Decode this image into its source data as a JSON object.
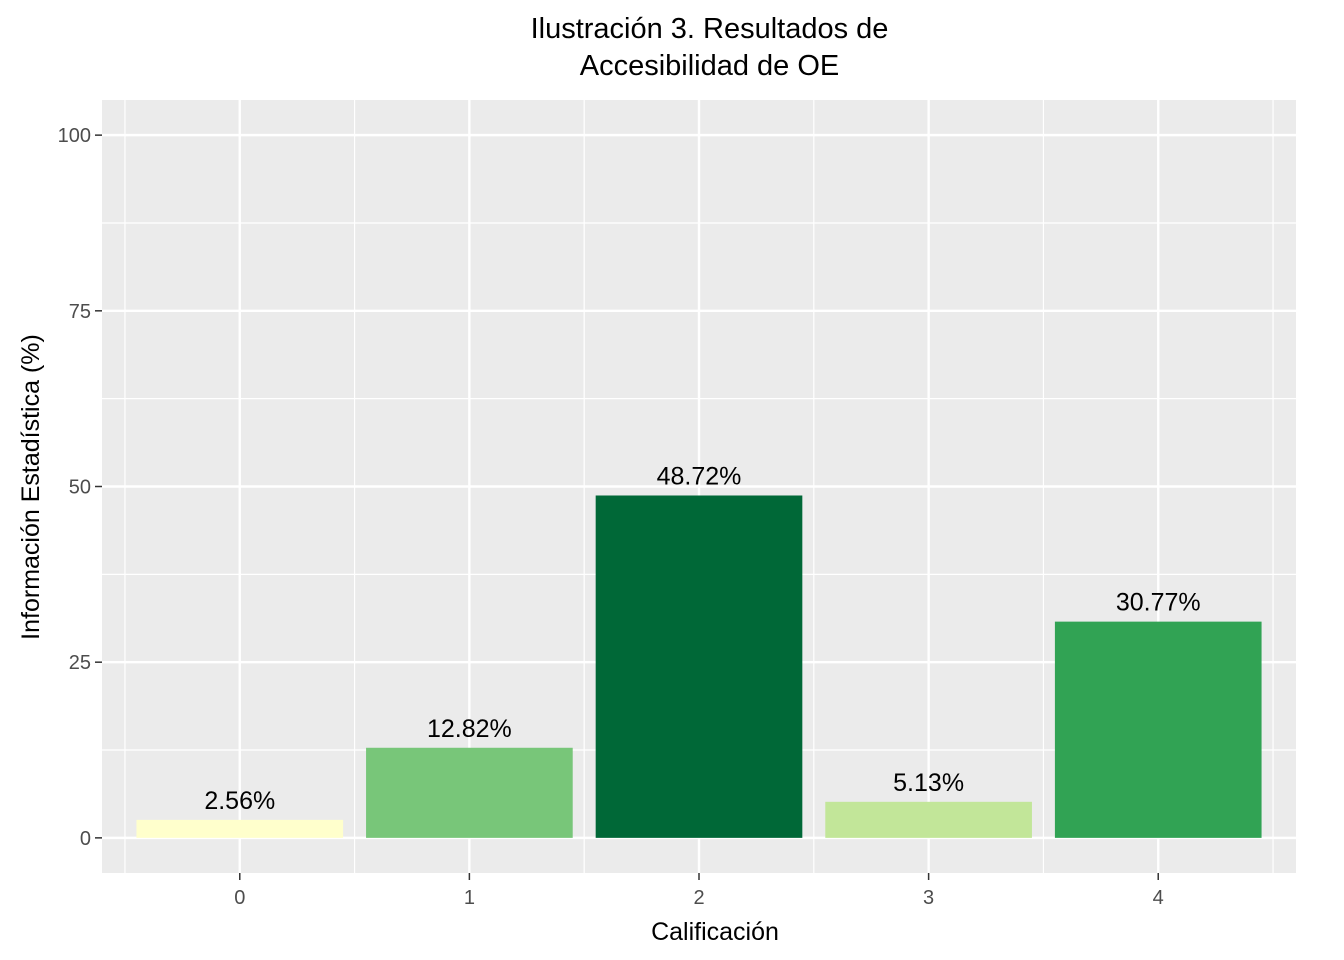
{
  "chart_data": {
    "type": "bar",
    "title_lines": [
      "Ilustración 3. Resultados de",
      "Accesibilidad de OE"
    ],
    "xlabel": "Calificación",
    "ylabel": "Información Estadística (%)",
    "categories": [
      "0",
      "1",
      "2",
      "3",
      "4"
    ],
    "values": [
      2.56,
      12.82,
      48.72,
      5.13,
      30.77
    ],
    "data_labels": [
      "2.56%",
      "12.82%",
      "48.72%",
      "5.13%",
      "30.77%"
    ],
    "bar_colors": [
      "#ffffcc",
      "#78c679",
      "#006837",
      "#c2e699",
      "#31a354"
    ],
    "y_ticks": [
      0,
      25,
      50,
      75,
      100
    ],
    "y_tick_labels": [
      "0",
      "25",
      "50",
      "75",
      "100"
    ],
    "ylim": [
      -5,
      105
    ],
    "grid": true,
    "legend": "none",
    "panel_color": "#ebebeb",
    "grid_color": "#ffffff"
  }
}
